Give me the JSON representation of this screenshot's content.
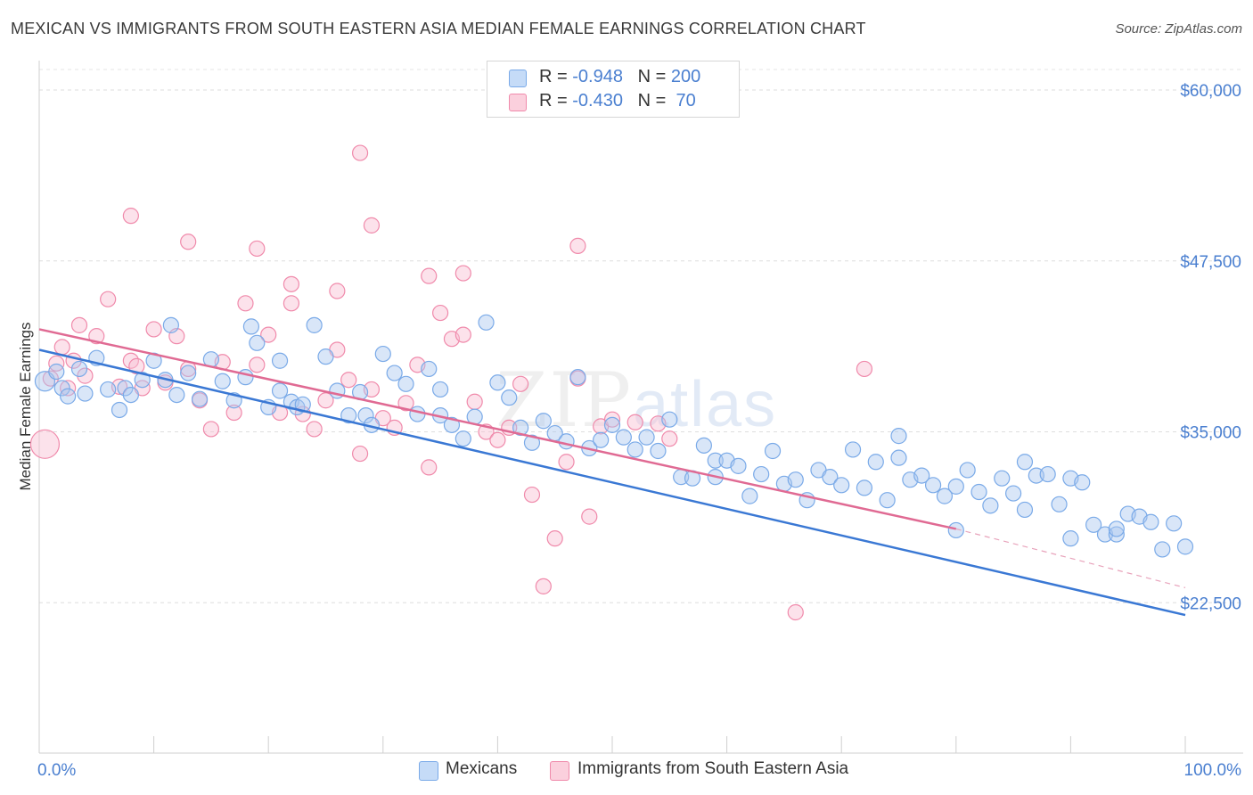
{
  "title": "MEXICAN VS IMMIGRANTS FROM SOUTH EASTERN ASIA MEDIAN FEMALE EARNINGS CORRELATION CHART",
  "source": "Source: ZipAtlas.com",
  "watermark": {
    "zip": "ZIP",
    "atlas": "atlas"
  },
  "legend_top": [
    {
      "r_label": "R = ",
      "r_value": "-0.948",
      "n_label": "N = ",
      "n_value": "200",
      "color": "#7aaae8"
    },
    {
      "r_label": "R = ",
      "r_value": "-0.430",
      "n_label": "N = ",
      "n_value": " 70",
      "color": "#f08aab"
    }
  ],
  "chart_data": {
    "type": "scatter",
    "ylabel": "Median Female Earnings",
    "x_tick_labels": [
      "0.0%",
      "100.0%"
    ],
    "y_tick_labels": [
      "$22,500",
      "$35,000",
      "$47,500",
      "$60,000"
    ],
    "y_ticks": [
      22500,
      35000,
      47500,
      60000
    ],
    "xlim": [
      0,
      100
    ],
    "ylim": [
      11500,
      61500
    ],
    "grid": true,
    "legend_position": "bottom",
    "series": [
      {
        "name": "Mexicans",
        "color": "#7aaae8",
        "trend": {
          "x0": 0,
          "y0": 41000,
          "x1": 100,
          "y1": 21600
        },
        "points": [
          [
            0.5,
            38700
          ],
          [
            1.5,
            39400
          ],
          [
            2,
            38200
          ],
          [
            2.5,
            37600
          ],
          [
            3.5,
            39600
          ],
          [
            4,
            37800
          ],
          [
            5,
            40400
          ],
          [
            6,
            38100
          ],
          [
            7,
            36600
          ],
          [
            7.5,
            38200
          ],
          [
            8,
            37700
          ],
          [
            9,
            38800
          ],
          [
            10,
            40200
          ],
          [
            11,
            38800
          ],
          [
            11.5,
            42800
          ],
          [
            12,
            37700
          ],
          [
            13,
            39300
          ],
          [
            14,
            37400
          ],
          [
            15,
            40300
          ],
          [
            16,
            38700
          ],
          [
            17,
            37300
          ],
          [
            18,
            39000
          ],
          [
            18.5,
            42700
          ],
          [
            19,
            41500
          ],
          [
            20,
            36800
          ],
          [
            21,
            38000
          ],
          [
            21,
            40200
          ],
          [
            22,
            37200
          ],
          [
            22.5,
            36800
          ],
          [
            23,
            37000
          ],
          [
            24,
            42800
          ],
          [
            25,
            40500
          ],
          [
            26,
            38000
          ],
          [
            27,
            36200
          ],
          [
            28,
            37900
          ],
          [
            28.5,
            36200
          ],
          [
            29,
            35500
          ],
          [
            30,
            40700
          ],
          [
            31,
            39300
          ],
          [
            32,
            38500
          ],
          [
            33,
            36300
          ],
          [
            34,
            39600
          ],
          [
            35,
            36200
          ],
          [
            35,
            38100
          ],
          [
            36,
            35500
          ],
          [
            37,
            34500
          ],
          [
            38,
            36100
          ],
          [
            39,
            43000
          ],
          [
            40,
            38600
          ],
          [
            41,
            37500
          ],
          [
            42,
            35300
          ],
          [
            43,
            34200
          ],
          [
            44,
            35800
          ],
          [
            45,
            34900
          ],
          [
            46,
            34300
          ],
          [
            47,
            39000
          ],
          [
            48,
            33800
          ],
          [
            49,
            34400
          ],
          [
            50,
            35500
          ],
          [
            51,
            34600
          ],
          [
            52,
            33700
          ],
          [
            53,
            34600
          ],
          [
            54,
            33600
          ],
          [
            55,
            35900
          ],
          [
            56,
            31700
          ],
          [
            57,
            31600
          ],
          [
            58,
            34000
          ],
          [
            59,
            31700
          ],
          [
            59,
            32900
          ],
          [
            60,
            32900
          ],
          [
            61,
            32500
          ],
          [
            62,
            30300
          ],
          [
            63,
            31900
          ],
          [
            64,
            33600
          ],
          [
            65,
            31200
          ],
          [
            66,
            31500
          ],
          [
            67,
            30000
          ],
          [
            68,
            32200
          ],
          [
            69,
            31700
          ],
          [
            70,
            31100
          ],
          [
            71,
            33700
          ],
          [
            72,
            30900
          ],
          [
            73,
            32800
          ],
          [
            74,
            30000
          ],
          [
            75,
            34700
          ],
          [
            75,
            33100
          ],
          [
            76,
            31500
          ],
          [
            77,
            31800
          ],
          [
            78,
            31100
          ],
          [
            79,
            30300
          ],
          [
            80,
            27800
          ],
          [
            80,
            31000
          ],
          [
            81,
            32200
          ],
          [
            82,
            30600
          ],
          [
            83,
            29600
          ],
          [
            84,
            31600
          ],
          [
            85,
            30500
          ],
          [
            86,
            29300
          ],
          [
            86,
            32800
          ],
          [
            87,
            31800
          ],
          [
            88,
            31900
          ],
          [
            89,
            29700
          ],
          [
            90,
            27200
          ],
          [
            90,
            31600
          ],
          [
            91,
            31300
          ],
          [
            92,
            28200
          ],
          [
            93,
            27500
          ],
          [
            94,
            27500
          ],
          [
            94,
            27900
          ],
          [
            95,
            29000
          ],
          [
            96,
            28800
          ],
          [
            97,
            28400
          ],
          [
            98,
            26400
          ],
          [
            99,
            28300
          ],
          [
            100,
            26600
          ]
        ]
      },
      {
        "name": "Immigrants from South Eastern Asia",
        "color": "#f08aab",
        "trend": {
          "x0": 0,
          "y0": 42500,
          "x1": 80,
          "y1": 27900
        },
        "trend_dashed": {
          "x0": 80,
          "y0": 27900,
          "x1": 100,
          "y1": 23600
        },
        "points": [
          [
            0.5,
            34100
          ],
          [
            1,
            38900
          ],
          [
            1.5,
            40000
          ],
          [
            2,
            41200
          ],
          [
            2.5,
            38200
          ],
          [
            3,
            40200
          ],
          [
            3.5,
            42800
          ],
          [
            4,
            39100
          ],
          [
            5,
            42000
          ],
          [
            6,
            44700
          ],
          [
            7,
            38300
          ],
          [
            8,
            40200
          ],
          [
            8.5,
            39800
          ],
          [
            9,
            38200
          ],
          [
            10,
            42500
          ],
          [
            11,
            38600
          ],
          [
            12,
            42000
          ],
          [
            13,
            39600
          ],
          [
            14,
            37300
          ],
          [
            15,
            35200
          ],
          [
            16,
            40100
          ],
          [
            17,
            36400
          ],
          [
            18,
            44400
          ],
          [
            19,
            39900
          ],
          [
            20,
            42100
          ],
          [
            21,
            36400
          ],
          [
            22,
            44400
          ],
          [
            23,
            36300
          ],
          [
            24,
            35200
          ],
          [
            25,
            37300
          ],
          [
            26,
            41000
          ],
          [
            27,
            38800
          ],
          [
            28,
            33400
          ],
          [
            29,
            38100
          ],
          [
            30,
            36000
          ],
          [
            31,
            35300
          ],
          [
            32,
            37100
          ],
          [
            33,
            39900
          ],
          [
            34,
            32400
          ],
          [
            35,
            43700
          ],
          [
            36,
            41800
          ],
          [
            37,
            42100
          ],
          [
            38,
            37200
          ],
          [
            39,
            35000
          ],
          [
            40,
            34400
          ],
          [
            41,
            35300
          ],
          [
            42,
            38500
          ],
          [
            43,
            30400
          ],
          [
            44,
            23700
          ],
          [
            45,
            27200
          ],
          [
            46,
            32800
          ],
          [
            47,
            38900
          ],
          [
            48,
            28800
          ],
          [
            49,
            35400
          ],
          [
            50,
            35900
          ],
          [
            52,
            35700
          ],
          [
            54,
            35600
          ],
          [
            55,
            34500
          ],
          [
            8,
            50800
          ],
          [
            13,
            48900
          ],
          [
            19,
            48400
          ],
          [
            22,
            45800
          ],
          [
            26,
            45300
          ],
          [
            28,
            55400
          ],
          [
            29,
            50100
          ],
          [
            34,
            46400
          ],
          [
            37,
            46600
          ],
          [
            47,
            48600
          ],
          [
            66,
            21800
          ],
          [
            72,
            39600
          ]
        ]
      }
    ]
  }
}
